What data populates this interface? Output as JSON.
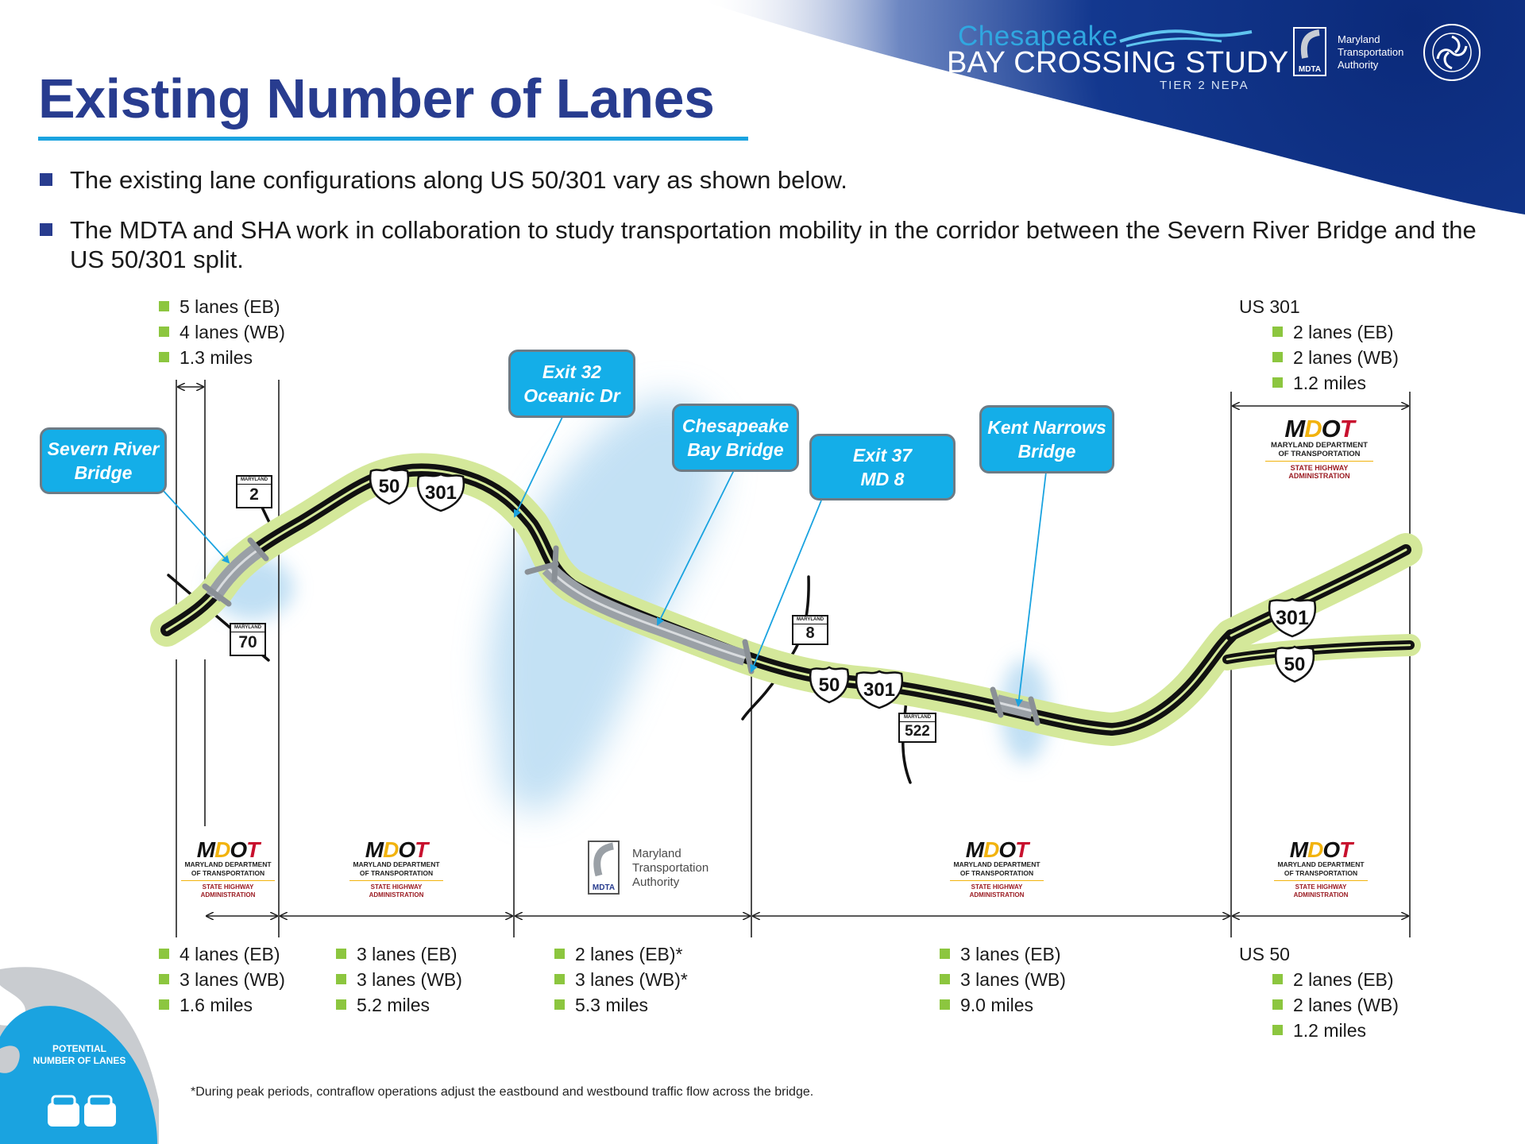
{
  "header": {
    "title": "Existing Number of Lanes",
    "brand": {
      "line1": "Chesapeake",
      "line2": "BAY CROSSING STUDY",
      "line3": "TIER 2 NEPA"
    },
    "authority": {
      "badge": "MDTA",
      "line1": "Maryland",
      "line2": "Transportation",
      "line3": "Authority"
    }
  },
  "bullets": [
    "The existing lane configurations along US 50/301 vary as shown below.",
    "The MDTA and SHA work in collaboration to study transportation mobility in the corridor between the Severn River Bridge and the US 50/301 split."
  ],
  "top_stats": {
    "left": [
      "5 lanes (EB)",
      "4 lanes (WB)",
      "1.3 miles"
    ],
    "right": {
      "head": "US 301",
      "rows": [
        "2 lanes (EB)",
        "2 lanes (WB)",
        "1.2 miles"
      ]
    }
  },
  "bottom_stats": [
    [
      "4 lanes (EB)",
      "3 lanes (WB)",
      "1.6 miles"
    ],
    [
      "3 lanes (EB)",
      "3 lanes (WB)",
      "5.2 miles"
    ],
    [
      "2 lanes (EB)*",
      "3 lanes (WB)*",
      "5.3 miles"
    ],
    [
      "3 lanes (EB)",
      "3 lanes (WB)",
      "9.0 miles"
    ]
  ],
  "bottom_right": {
    "head": "US 50",
    "rows": [
      "2 lanes (EB)",
      "2 lanes (WB)",
      "1.2 miles"
    ]
  },
  "callouts": {
    "severn": [
      "Severn River",
      "Bridge"
    ],
    "exit32": [
      "Exit 32",
      "Oceanic Dr"
    ],
    "bay": [
      "Chesapeake",
      "Bay Bridge"
    ],
    "exit37": [
      "Exit 37",
      "MD 8"
    ],
    "kent": [
      "Kent Narrows",
      "Bridge"
    ]
  },
  "shields": {
    "md2": "2",
    "md70": "70",
    "md8": "8",
    "md522": "522",
    "us50a": "50",
    "us301a": "301",
    "us50b": "50",
    "us301b": "301",
    "us301c": "301",
    "us50c": "50",
    "maryland": "MARYLAND"
  },
  "mdot_logo": {
    "mark": "MDOT",
    "line1": "MARYLAND DEPARTMENT",
    "line2": "OF TRANSPORTATION",
    "line3": "STATE HIGHWAY",
    "line4": "ADMINISTRATION"
  },
  "mdta_logo": {
    "badge": "MDTA",
    "line1": "Maryland",
    "line2": "Transportation",
    "line3": "Authority"
  },
  "badge": {
    "line1": "POTENTIAL",
    "line2": "NUMBER OF LANES"
  },
  "footnote": "*During peak periods, contraflow operations adjust the eastbound and westbound traffic flow across the bridge.",
  "colors": {
    "title": "#283c8f",
    "accent": "#1aa3e0",
    "callout": "#14aee8",
    "road_buffer": "#d4e89a",
    "bullet_green": "#8cc63f",
    "water": "#b9dcf3"
  }
}
